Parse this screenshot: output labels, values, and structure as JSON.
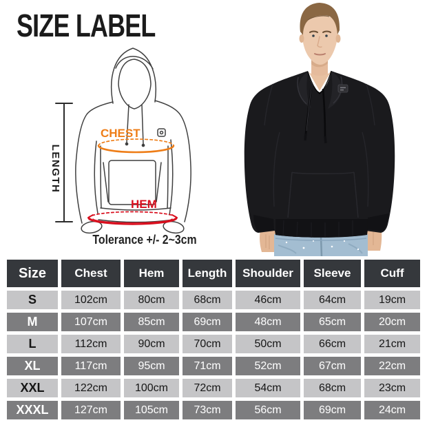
{
  "title": "SIZE LABEL",
  "diagram": {
    "length_label": "LENGTH",
    "chest_label": "CHEST",
    "hem_label": "HEM",
    "tolerance_note": "Tolerance +/- 2~3cm"
  },
  "colors": {
    "chest_accent": "#ee7d17",
    "hem_accent": "#d90f1e",
    "outline": "#3f3f3f",
    "header_bg": "#35383c",
    "row_light": "#c5c5c7",
    "row_dark": "#7d7d7f"
  },
  "photo": {
    "alt": "Man modeling black pullover hoodie with jeans"
  },
  "size_table": {
    "headers": [
      "Size",
      "Chest",
      "Hem",
      "Length",
      "Shoulder",
      "Sleeve",
      "Cuff"
    ],
    "rows": [
      {
        "size": "S",
        "values": [
          "102cm",
          "80cm",
          "68cm",
          "46cm",
          "64cm",
          "19cm"
        ]
      },
      {
        "size": "M",
        "values": [
          "107cm",
          "85cm",
          "69cm",
          "48cm",
          "65cm",
          "20cm"
        ]
      },
      {
        "size": "L",
        "values": [
          "112cm",
          "90cm",
          "70cm",
          "50cm",
          "66cm",
          "21cm"
        ]
      },
      {
        "size": "XL",
        "values": [
          "117cm",
          "95cm",
          "71cm",
          "52cm",
          "67cm",
          "22cm"
        ]
      },
      {
        "size": "XXL",
        "values": [
          "122cm",
          "100cm",
          "72cm",
          "54cm",
          "68cm",
          "23cm"
        ]
      },
      {
        "size": "XXXL",
        "values": [
          "127cm",
          "105cm",
          "73cm",
          "56cm",
          "69cm",
          "24cm"
        ]
      }
    ]
  }
}
